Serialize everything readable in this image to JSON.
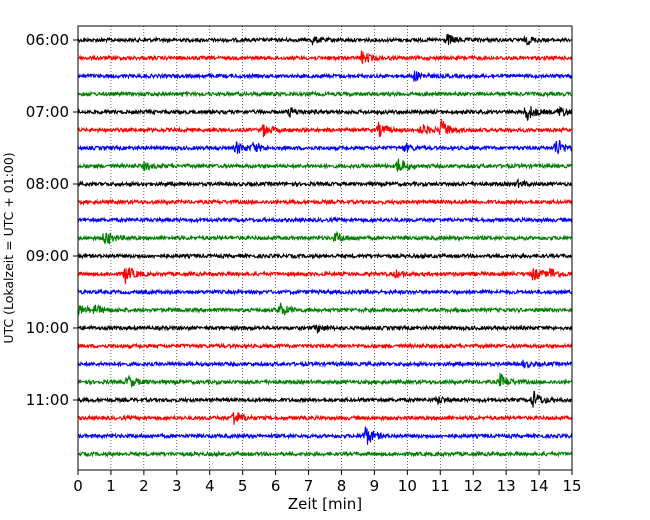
{
  "chart_data": {
    "type": "seismogram",
    "xlabel": "Zeit  [min]",
    "ylabel": "UTC (Lokalzeit = UTC + 01:00)",
    "xlim": [
      0,
      15
    ],
    "x_ticks": [
      "0",
      "1",
      "2",
      "3",
      "4",
      "5",
      "6",
      "7",
      "8",
      "9",
      "10",
      "11",
      "12",
      "13",
      "14",
      "15"
    ],
    "y_ticks": [
      "06:00",
      "07:00",
      "08:00",
      "09:00",
      "10:00",
      "11:00"
    ],
    "grid": "vertical-dotted",
    "trace_interval_min": 15,
    "color_cycle": [
      "#000000",
      "#ff0000",
      "#0000ff",
      "#008000"
    ],
    "traces": [
      {
        "start": "06:00",
        "events": [
          [
            11.2,
            0.5
          ],
          [
            13.6,
            0.35
          ],
          [
            7.1,
            0.3
          ]
        ]
      },
      {
        "start": "06:15",
        "events": [
          [
            8.6,
            0.6
          ]
        ]
      },
      {
        "start": "06:30",
        "events": [
          [
            10.2,
            0.45
          ]
        ]
      },
      {
        "start": "06:45",
        "events": []
      },
      {
        "start": "07:00",
        "events": [
          [
            6.4,
            0.45
          ],
          [
            13.6,
            0.85
          ],
          [
            14.6,
            0.55
          ]
        ]
      },
      {
        "start": "07:15",
        "events": [
          [
            5.6,
            0.6
          ],
          [
            9.1,
            0.65
          ],
          [
            10.4,
            0.55
          ],
          [
            11.0,
            1.0
          ]
        ]
      },
      {
        "start": "07:30",
        "events": [
          [
            4.8,
            0.55
          ],
          [
            5.3,
            0.5
          ],
          [
            9.9,
            0.35
          ],
          [
            14.5,
            0.95
          ]
        ]
      },
      {
        "start": "07:45",
        "events": [
          [
            2.0,
            0.35
          ],
          [
            9.7,
            0.75
          ]
        ]
      },
      {
        "start": "08:00",
        "events": [
          [
            13.3,
            0.3
          ]
        ]
      },
      {
        "start": "08:15",
        "events": []
      },
      {
        "start": "08:30",
        "events": []
      },
      {
        "start": "08:45",
        "events": [
          [
            0.8,
            0.75
          ],
          [
            7.8,
            0.5
          ]
        ]
      },
      {
        "start": "09:00",
        "events": []
      },
      {
        "start": "09:15",
        "events": [
          [
            1.4,
            0.95
          ],
          [
            9.6,
            0.35
          ],
          [
            13.8,
            0.6
          ],
          [
            14.3,
            0.55
          ]
        ]
      },
      {
        "start": "09:30",
        "events": []
      },
      {
        "start": "09:45",
        "events": [
          [
            0.0,
            0.45
          ],
          [
            0.5,
            0.4
          ],
          [
            6.1,
            0.7
          ]
        ]
      },
      {
        "start": "10:00",
        "events": [
          [
            7.2,
            0.4
          ]
        ]
      },
      {
        "start": "10:15",
        "events": []
      },
      {
        "start": "10:30",
        "events": [
          [
            13.5,
            0.3
          ]
        ]
      },
      {
        "start": "10:45",
        "events": [
          [
            1.5,
            0.6
          ],
          [
            12.8,
            0.75
          ]
        ]
      },
      {
        "start": "11:00",
        "events": [
          [
            10.9,
            0.35
          ],
          [
            13.8,
            0.85
          ]
        ]
      },
      {
        "start": "11:15",
        "events": [
          [
            4.7,
            0.8
          ]
        ]
      },
      {
        "start": "11:30",
        "events": [
          [
            8.7,
            1.0
          ]
        ]
      },
      {
        "start": "11:45",
        "events": []
      }
    ]
  }
}
